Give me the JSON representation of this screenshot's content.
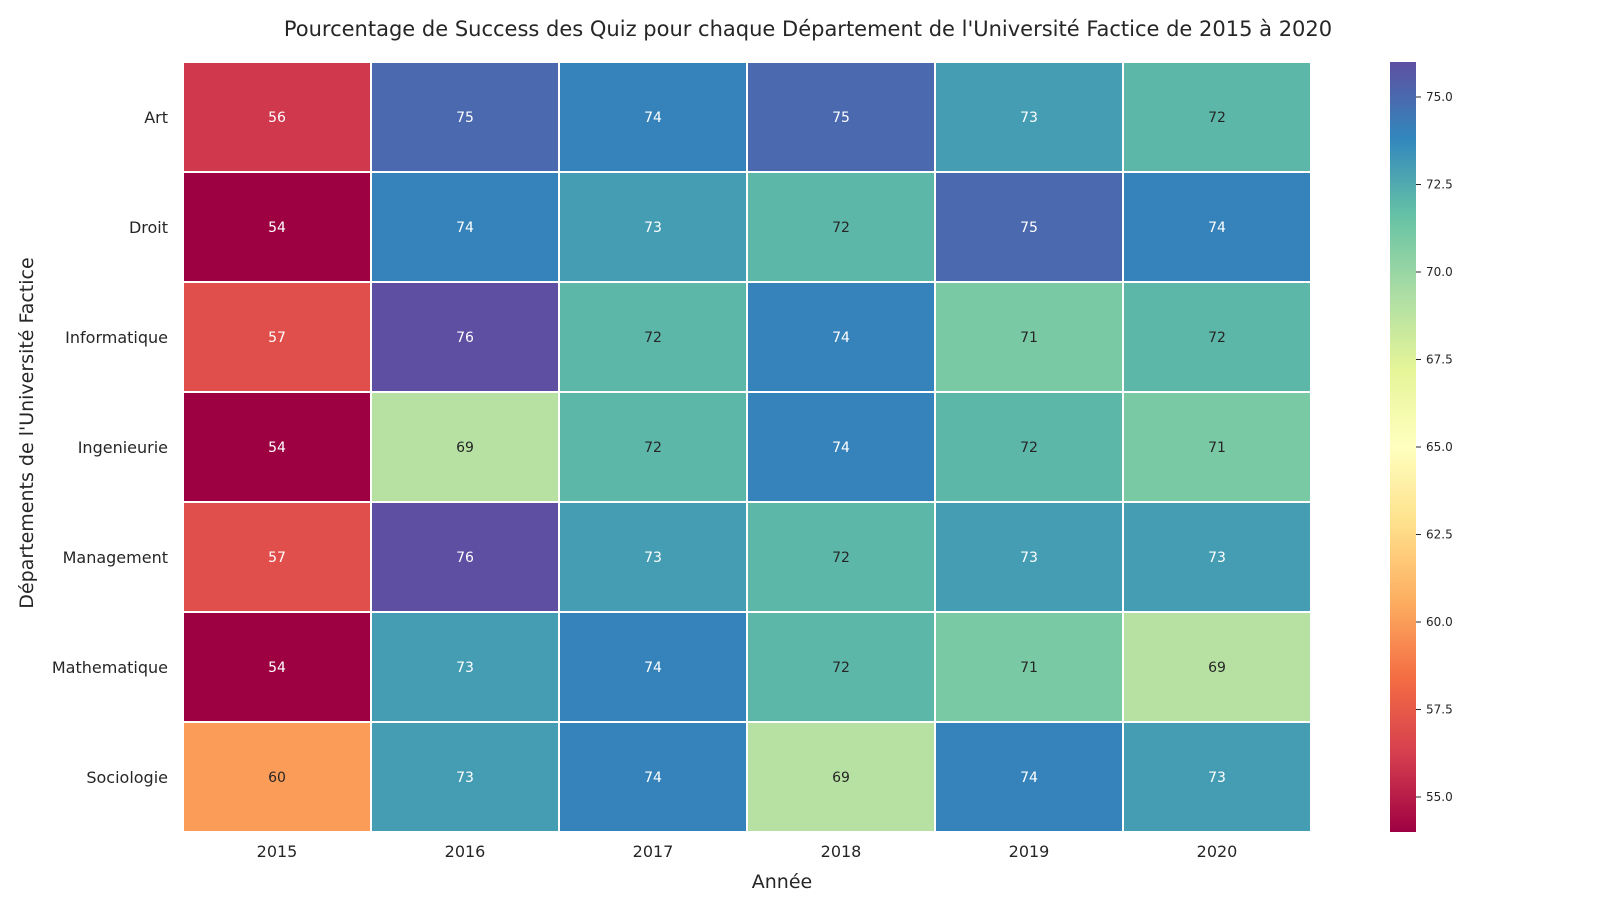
{
  "chart_data": {
    "type": "heatmap",
    "title": "Pourcentage de Success des Quiz pour chaque Département de l'Université Factice de 2015 à 2020",
    "xlabel": "Année",
    "ylabel": "Départements de l'Université Factice",
    "x_categories": [
      "2015",
      "2016",
      "2017",
      "2018",
      "2019",
      "2020"
    ],
    "y_categories": [
      "Art",
      "Droit",
      "Informatique",
      "Ingenieurie",
      "Management",
      "Mathematique",
      "Sociologie"
    ],
    "values": [
      [
        56,
        75,
        74,
        75,
        73,
        72
      ],
      [
        54,
        74,
        73,
        72,
        75,
        74
      ],
      [
        57,
        76,
        72,
        74,
        71,
        72
      ],
      [
        54,
        69,
        72,
        74,
        72,
        71
      ],
      [
        57,
        76,
        73,
        72,
        73,
        73
      ],
      [
        54,
        73,
        74,
        72,
        71,
        69
      ],
      [
        60,
        73,
        74,
        69,
        74,
        73
      ]
    ],
    "colormap": "Spectral",
    "vmin": 54,
    "vmax": 76,
    "colorbar_ticks": [
      "55.0",
      "57.5",
      "60.0",
      "62.5",
      "65.0",
      "67.5",
      "70.0",
      "72.5",
      "75.0"
    ],
    "annotations": true,
    "grid_line_color": "#ffffff"
  }
}
